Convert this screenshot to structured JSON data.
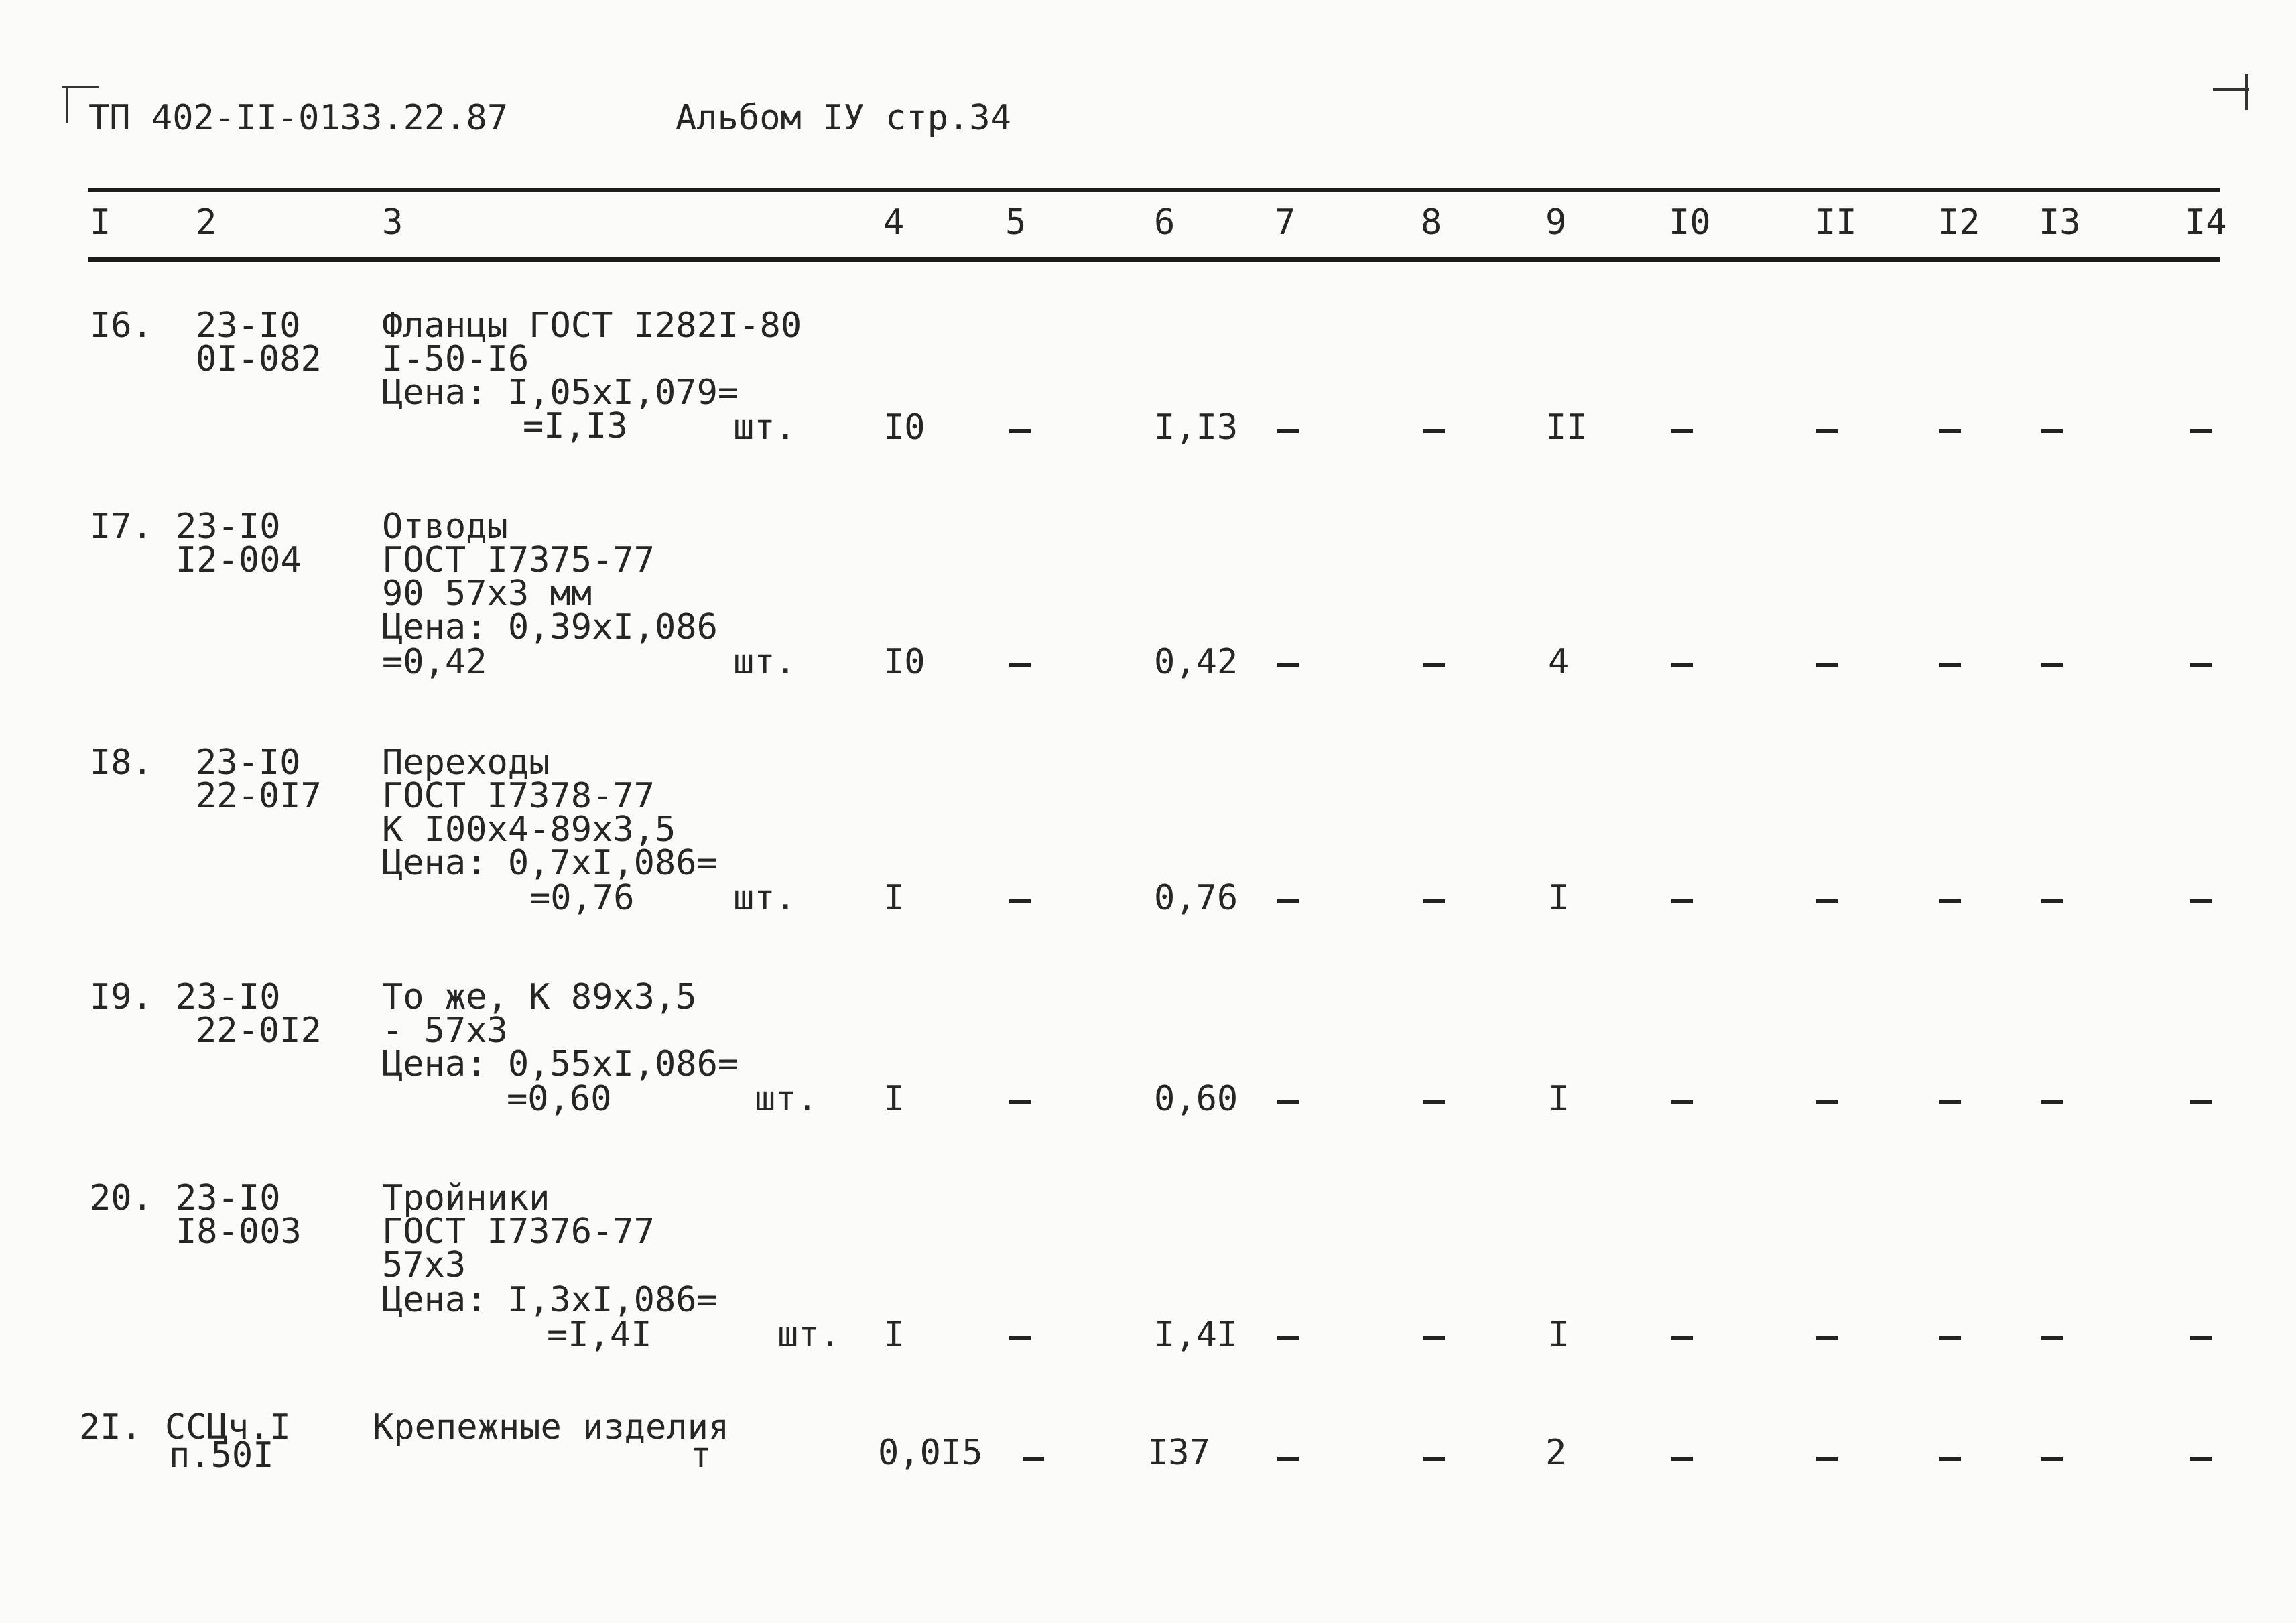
{
  "header": {
    "doc_code": "ТП 402-II-0133.22.87",
    "album_ref": "Альбом IУ стр.34"
  },
  "columns": [
    "I",
    "2",
    "3",
    "4",
    "5",
    "6",
    "7",
    "8",
    "9",
    "I0",
    "II",
    "I2",
    "I3",
    "I4"
  ],
  "rows": [
    {
      "num": "I6.",
      "code": [
        "23-I0",
        "0I-082"
      ],
      "desc": [
        "Фланцы ГОСТ I282I-80",
        "I-50-I6",
        "Цена: I,05xI,079=",
        "=I,I3"
      ],
      "unit": "шт.",
      "c4": "I0",
      "c5": "-",
      "c6": "I,I3",
      "c7": "-",
      "c8": "-",
      "c9": "II",
      "c10": "-",
      "c11": "-",
      "c12": "-",
      "c13": "-",
      "c14": "-"
    },
    {
      "num": "I7.",
      "code": [
        "23-I0",
        "I2-004"
      ],
      "desc": [
        "Отводы",
        "ГОСТ I7375-77",
        "90 57x3 мм",
        "Цена: 0,39xI,086",
        "=0,42"
      ],
      "unit": "шт.",
      "c4": "I0",
      "c5": "-",
      "c6": "0,42",
      "c7": "-",
      "c8": "-",
      "c9": "4",
      "c10": "-",
      "c11": "-",
      "c12": "-",
      "c13": "-",
      "c14": "-"
    },
    {
      "num": "I8.",
      "code": [
        "23-I0",
        "22-0I7"
      ],
      "desc": [
        "Переходы",
        "ГОСТ I7378-77",
        "К I00x4-89x3,5",
        "Цена: 0,7xI,086=",
        "=0,76"
      ],
      "unit": "шт.",
      "c4": "I",
      "c5": "-",
      "c6": "0,76",
      "c7": "-",
      "c8": "-",
      "c9": "I",
      "c10": "-",
      "c11": "-",
      "c12": "-",
      "c13": "-",
      "c14": "-"
    },
    {
      "num": "I9.",
      "code": [
        "23-I0",
        "22-0I2"
      ],
      "desc": [
        "То же, К 89x3,5",
        "- 57x3",
        "Цена: 0,55xI,086=",
        "=0,60"
      ],
      "unit": "шт.",
      "c4": "I",
      "c5": "-",
      "c6": "0,60",
      "c7": "-",
      "c8": "-",
      "c9": "I",
      "c10": "-",
      "c11": "-",
      "c12": "-",
      "c13": "-",
      "c14": "-"
    },
    {
      "num": "20.",
      "code": [
        "23-I0",
        "I8-003"
      ],
      "desc": [
        "Тройники",
        "ГОСТ I7376-77",
        "57x3",
        "Цена: I,3xI,086=",
        "=I,4I"
      ],
      "unit": "шт.",
      "c4": "I",
      "c5": "-",
      "c6": "I,4I",
      "c7": "-",
      "c8": "-",
      "c9": "I",
      "c10": "-",
      "c11": "-",
      "c12": "-",
      "c13": "-",
      "c14": "-"
    },
    {
      "num": "2I.",
      "code": [
        "ССЦч.I",
        "п.50I"
      ],
      "desc": [
        "Крепежные изделия"
      ],
      "unit": "т",
      "c4": "0,0I5",
      "c5": "-",
      "c6": "I37",
      "c7": "-",
      "c8": "-",
      "c9": "2",
      "c10": "-",
      "c11": "-",
      "c12": "-",
      "c13": "-",
      "c14": "-"
    }
  ]
}
